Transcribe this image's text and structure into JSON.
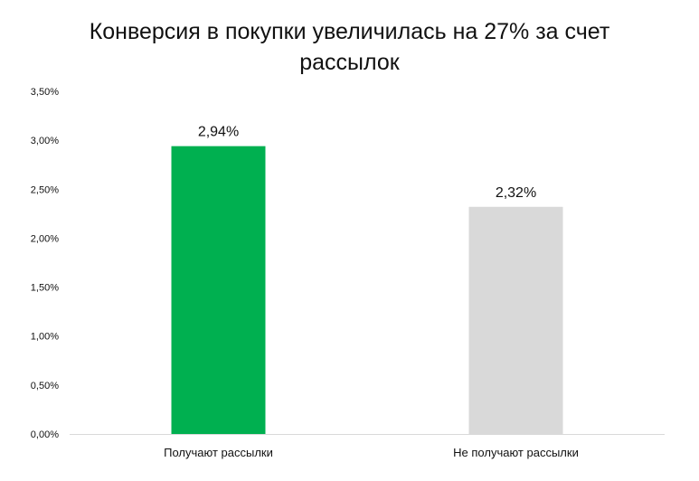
{
  "chart_data": {
    "type": "bar",
    "title": "Конверсия в покупки увеличилась на 27% за счет рассылок",
    "categories": [
      "Получают рассылки",
      "Не получают рассылки"
    ],
    "values": [
      2.94,
      2.32
    ],
    "data_labels": [
      "2,94%",
      "2,32%"
    ],
    "ylim": [
      0,
      3.5
    ],
    "y_ticks": [
      {
        "value": 0.0,
        "label": "0,00%"
      },
      {
        "value": 0.5,
        "label": "0,50%"
      },
      {
        "value": 1.0,
        "label": "1,00%"
      },
      {
        "value": 1.5,
        "label": "1,50%"
      },
      {
        "value": 2.0,
        "label": "2,00%"
      },
      {
        "value": 2.5,
        "label": "2,50%"
      },
      {
        "value": 3.0,
        "label": "3,00%"
      },
      {
        "value": 3.5,
        "label": "3,50%"
      }
    ],
    "bar_colors": [
      "#00b050",
      "#d9d9d9"
    ],
    "grid": false,
    "legend": "none"
  }
}
